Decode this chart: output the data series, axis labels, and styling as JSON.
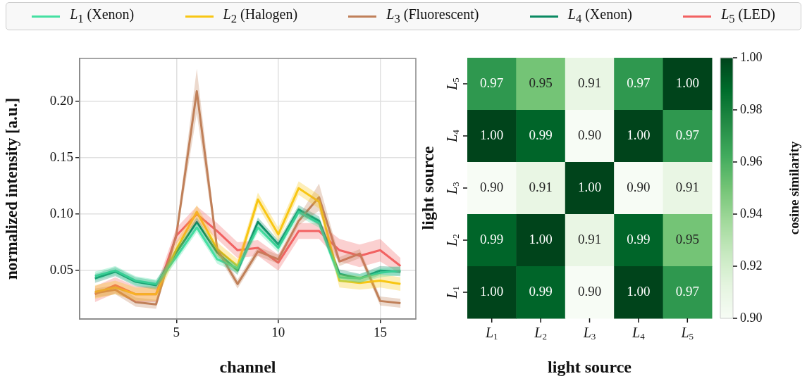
{
  "chart_data": [
    {
      "type": "line",
      "xlabel": "channel",
      "ylabel": "normalized intensity [a.u.]",
      "x": [
        1,
        2,
        3,
        4,
        5,
        6,
        7,
        8,
        9,
        10,
        11,
        12,
        13,
        14,
        15,
        16
      ],
      "xlim": [
        0.25,
        16.75
      ],
      "xticks": [
        5,
        10,
        15
      ],
      "ylim": [
        0.007,
        0.238
      ],
      "yticks": [
        {
          "value": 0.05,
          "label": "0.05"
        },
        {
          "value": 0.1,
          "label": "0.10"
        },
        {
          "value": 0.15,
          "label": "0.15"
        },
        {
          "value": 0.2,
          "label": "0.20"
        }
      ],
      "grid": true,
      "legend": "top",
      "series": [
        {
          "name": "L$_{1}$ (Xenon)",
          "color": "#45e0a2",
          "values": [
            0.045,
            0.05,
            0.041,
            0.038,
            0.062,
            0.088,
            0.06,
            0.052,
            0.088,
            0.07,
            0.102,
            0.092,
            0.044,
            0.043,
            0.048,
            0.05
          ],
          "lower": [
            0.041,
            0.046,
            0.037,
            0.034,
            0.058,
            0.084,
            0.056,
            0.048,
            0.084,
            0.066,
            0.098,
            0.088,
            0.04,
            0.039,
            0.044,
            0.046
          ],
          "upper": [
            0.049,
            0.054,
            0.045,
            0.042,
            0.066,
            0.092,
            0.064,
            0.056,
            0.092,
            0.074,
            0.106,
            0.096,
            0.048,
            0.047,
            0.052,
            0.054
          ]
        },
        {
          "name": "L$_{2}$ (Halogen)",
          "color": "#f8c614",
          "values": [
            0.031,
            0.035,
            0.029,
            0.029,
            0.069,
            0.102,
            0.069,
            0.054,
            0.113,
            0.082,
            0.123,
            0.111,
            0.041,
            0.039,
            0.041,
            0.038
          ],
          "lower": [
            0.025,
            0.029,
            0.023,
            0.023,
            0.063,
            0.096,
            0.063,
            0.048,
            0.107,
            0.076,
            0.117,
            0.105,
            0.035,
            0.033,
            0.035,
            0.032
          ],
          "upper": [
            0.037,
            0.041,
            0.035,
            0.035,
            0.075,
            0.108,
            0.075,
            0.06,
            0.119,
            0.088,
            0.129,
            0.117,
            0.047,
            0.045,
            0.047,
            0.044
          ]
        },
        {
          "name": "L$_{3}$ (Fluorescent)",
          "color": "#c0805a",
          "values": [
            0.03,
            0.033,
            0.022,
            0.02,
            0.082,
            0.209,
            0.069,
            0.038,
            0.067,
            0.06,
            0.094,
            0.115,
            0.058,
            0.065,
            0.023,
            0.021
          ],
          "lower": [
            0.026,
            0.029,
            0.018,
            0.016,
            0.078,
            0.189,
            0.065,
            0.034,
            0.063,
            0.056,
            0.09,
            0.103,
            0.054,
            0.061,
            0.019,
            0.017
          ],
          "upper": [
            0.034,
            0.037,
            0.026,
            0.024,
            0.086,
            0.229,
            0.073,
            0.042,
            0.071,
            0.064,
            0.098,
            0.127,
            0.062,
            0.069,
            0.027,
            0.025
          ]
        },
        {
          "name": "L$_{4}$ (Xenon)",
          "color": "#0b8a62",
          "values": [
            0.043,
            0.049,
            0.04,
            0.037,
            0.066,
            0.093,
            0.066,
            0.05,
            0.093,
            0.073,
            0.104,
            0.094,
            0.047,
            0.043,
            0.05,
            0.049
          ],
          "lower": [
            0.039,
            0.045,
            0.036,
            0.033,
            0.062,
            0.089,
            0.062,
            0.046,
            0.089,
            0.069,
            0.1,
            0.09,
            0.043,
            0.039,
            0.046,
            0.045
          ],
          "upper": [
            0.047,
            0.053,
            0.044,
            0.041,
            0.07,
            0.097,
            0.07,
            0.054,
            0.097,
            0.077,
            0.108,
            0.098,
            0.051,
            0.047,
            0.054,
            0.053
          ]
        },
        {
          "name": "L$_{5}$ (LED)",
          "color": "#f26262",
          "values": [
            0.029,
            0.037,
            0.029,
            0.029,
            0.081,
            0.1,
            0.085,
            0.068,
            0.07,
            0.057,
            0.085,
            0.085,
            0.068,
            0.063,
            0.068,
            0.054
          ],
          "lower": [
            0.022,
            0.03,
            0.022,
            0.022,
            0.074,
            0.093,
            0.078,
            0.061,
            0.063,
            0.05,
            0.078,
            0.078,
            0.058,
            0.053,
            0.058,
            0.047
          ],
          "upper": [
            0.036,
            0.044,
            0.036,
            0.036,
            0.088,
            0.107,
            0.092,
            0.075,
            0.077,
            0.064,
            0.092,
            0.092,
            0.078,
            0.073,
            0.078,
            0.061
          ]
        }
      ]
    },
    {
      "type": "heatmap",
      "xlabel": "light source",
      "ylabel": "light source",
      "clabel": "cosine similarity",
      "categories": [
        "L$_{1}$",
        "L$_{2}$",
        "L$_{3}$",
        "L$_{4}$",
        "L$_{5}$"
      ],
      "y_categories": [
        "L$_{5}$",
        "L$_{4}$",
        "L$_{3}$",
        "L$_{2}$",
        "L$_{1}$"
      ],
      "cells": [
        [
          0.97,
          0.95,
          0.91,
          0.97,
          1.0
        ],
        [
          1.0,
          0.99,
          0.9,
          1.0,
          0.97
        ],
        [
          0.9,
          0.91,
          1.0,
          0.9,
          0.91
        ],
        [
          0.99,
          1.0,
          0.91,
          0.99,
          0.95
        ],
        [
          1.0,
          0.99,
          0.9,
          1.0,
          0.97
        ]
      ],
      "cell_labels": [
        [
          "0.97",
          "0.95",
          "0.91",
          "0.97",
          "1.00"
        ],
        [
          "1.00",
          "0.99",
          "0.90",
          "1.00",
          "0.97"
        ],
        [
          "0.90",
          "0.91",
          "1.00",
          "0.90",
          "0.91"
        ],
        [
          "0.99",
          "1.00",
          "0.91",
          "0.99",
          "0.95"
        ],
        [
          "1.00",
          "0.99",
          "0.90",
          "1.00",
          "0.97"
        ]
      ],
      "clim": [
        0.9,
        1.0
      ],
      "cticks": [
        {
          "value": 0.9,
          "label": "0.90"
        },
        {
          "value": 0.92,
          "label": "0.92"
        },
        {
          "value": 0.94,
          "label": "0.94"
        },
        {
          "value": 0.96,
          "label": "0.96"
        },
        {
          "value": 0.98,
          "label": "0.98"
        },
        {
          "value": 1.0,
          "label": "1.00"
        }
      ]
    }
  ]
}
